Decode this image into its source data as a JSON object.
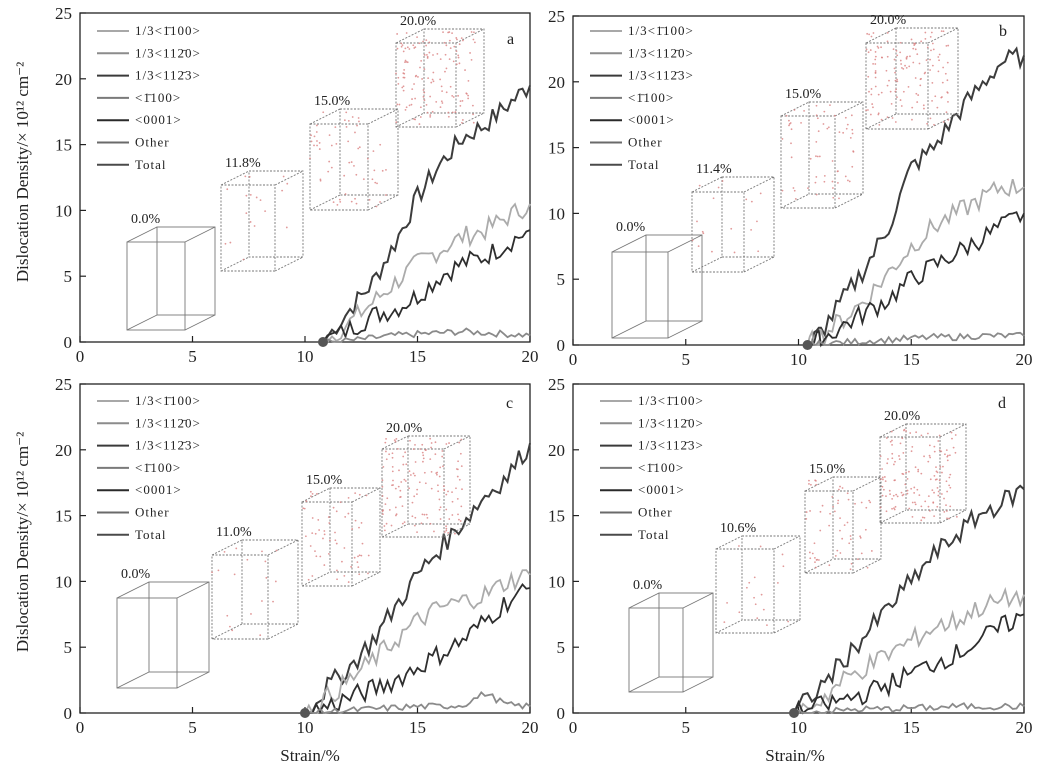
{
  "figure": {
    "xlabel": "Strain/%",
    "ylabel": "Dislocation Density/× 10¹² cm⁻²"
  },
  "legend": [
    {
      "label": "1/3<1̄100>",
      "color": "#a8a8a8"
    },
    {
      "label": "1/3<112̄0>",
      "color": "#8c8c8c"
    },
    {
      "label": "1/3<112̄3>",
      "color": "#3a3a3a"
    },
    {
      "label": "<1̄100>",
      "color": "#7a7a7a"
    },
    {
      "label": "<0001>",
      "color": "#2a2a2a"
    },
    {
      "label": "Other",
      "color": "#6a6a6a"
    },
    {
      "label": "Total",
      "color": "#4a4a4a"
    }
  ],
  "colors": {
    "total": "#3c3c3c",
    "a_type": "#ababab",
    "c_a": "#2e2e2e",
    "other": "#8a8a8a",
    "marker": "#555555",
    "snapshot_frame": "#777777",
    "snapshot_dots": "#d98080"
  },
  "chart_data": [
    {
      "panel": "a",
      "type": "line",
      "xlim": [
        0,
        20
      ],
      "ylim": [
        0,
        25
      ],
      "xticks": [
        0,
        5,
        10,
        15,
        20
      ],
      "yticks": [
        0,
        5,
        10,
        15,
        20,
        25
      ],
      "onset_strain": 10.8,
      "series": [
        {
          "name": "Total",
          "x": [
            10.8,
            12,
            13,
            14,
            15,
            16,
            17,
            18,
            19,
            20
          ],
          "values": [
            0,
            2.5,
            4.5,
            7.5,
            11,
            13.5,
            15.5,
            16.5,
            18,
            19.5
          ]
        },
        {
          "name": "1/3<1̄100>",
          "x": [
            10.8,
            12,
            13,
            14,
            15,
            16,
            17,
            18,
            19,
            20
          ],
          "values": [
            0,
            1.5,
            3,
            4.5,
            6,
            7,
            8,
            8.5,
            9.5,
            10.5
          ]
        },
        {
          "name": "1/3<112̄3>",
          "x": [
            10.8,
            12,
            13,
            14,
            15,
            16,
            17,
            18,
            19,
            20
          ],
          "values": [
            0,
            1,
            2,
            2.5,
            3.5,
            5,
            6,
            6.5,
            7.5,
            8.5
          ]
        },
        {
          "name": "Other",
          "x": [
            10.8,
            12,
            13,
            14,
            15,
            16,
            17,
            18,
            19,
            20
          ],
          "values": [
            0,
            0.1,
            0.3,
            0.5,
            0.6,
            0.7,
            0.8,
            0.7,
            0.6,
            0.5
          ]
        }
      ],
      "snapshots": [
        {
          "label": "0.0%"
        },
        {
          "label": "11.8%"
        },
        {
          "label": "15.0%"
        },
        {
          "label": "20.0%"
        }
      ]
    },
    {
      "panel": "b",
      "type": "line",
      "xlim": [
        0,
        20
      ],
      "ylim": [
        0,
        25
      ],
      "xticks": [
        0,
        5,
        10,
        15,
        20
      ],
      "yticks": [
        0,
        5,
        10,
        15,
        20,
        25
      ],
      "onset_strain": 10.4,
      "series": [
        {
          "name": "Total",
          "x": [
            10.4,
            11,
            12,
            13,
            14,
            15,
            16,
            17,
            18,
            19,
            20
          ],
          "values": [
            0,
            1,
            3.5,
            6,
            9,
            13.5,
            15,
            17.5,
            19.5,
            21.5,
            22
          ]
        },
        {
          "name": "1/3<1̄100>",
          "x": [
            10.4,
            11,
            12,
            13,
            14,
            15,
            16,
            17,
            18,
            19,
            20
          ],
          "values": [
            0,
            0.7,
            2,
            3.5,
            5.5,
            7.5,
            9,
            10,
            11,
            12,
            12
          ]
        },
        {
          "name": "1/3<112̄3>",
          "x": [
            10.4,
            11,
            12,
            13,
            14,
            15,
            16,
            17,
            18,
            19,
            20
          ],
          "values": [
            0,
            0.4,
            1.5,
            2.5,
            3.5,
            5,
            6,
            7,
            8,
            9,
            10
          ]
        },
        {
          "name": "Other",
          "x": [
            10.4,
            11,
            12,
            13,
            14,
            15,
            16,
            17,
            18,
            19,
            20
          ],
          "values": [
            0,
            0.1,
            0.2,
            0.3,
            0.4,
            0.5,
            0.6,
            0.6,
            0.7,
            0.7,
            0.7
          ]
        }
      ],
      "snapshots": [
        {
          "label": "0.0%"
        },
        {
          "label": "11.4%"
        },
        {
          "label": "15.0%"
        },
        {
          "label": "20.0%"
        }
      ]
    },
    {
      "panel": "c",
      "type": "line",
      "xlim": [
        0,
        20
      ],
      "ylim": [
        0,
        25
      ],
      "xticks": [
        0,
        5,
        10,
        15,
        20
      ],
      "yticks": [
        0,
        5,
        10,
        15,
        20,
        25
      ],
      "onset_strain": 10.0,
      "series": [
        {
          "name": "Total",
          "x": [
            10,
            11,
            12,
            13,
            14,
            15,
            16,
            17,
            18,
            19,
            20
          ],
          "values": [
            0,
            2,
            3.5,
            5.5,
            8,
            10.5,
            12.5,
            14.5,
            16.5,
            18,
            20.5
          ]
        },
        {
          "name": "1/3<1̄100>",
          "x": [
            10,
            11,
            12,
            13,
            14,
            15,
            16,
            17,
            18,
            19,
            20
          ],
          "values": [
            0,
            1.2,
            2.5,
            4,
            5.5,
            7,
            8,
            8.5,
            9,
            10,
            10.5
          ]
        },
        {
          "name": "1/3<112̄3>",
          "x": [
            10,
            11,
            12,
            13,
            14,
            15,
            16,
            17,
            18,
            19,
            20
          ],
          "values": [
            0,
            0.5,
            1.2,
            1.8,
            2.5,
            3.5,
            4.5,
            5.5,
            7,
            8.5,
            9.5
          ]
        },
        {
          "name": "Other",
          "x": [
            10,
            11,
            12,
            13,
            14,
            15,
            16,
            17,
            18,
            19,
            20
          ],
          "values": [
            0,
            0.1,
            0.2,
            0.3,
            0.4,
            0.5,
            0.5,
            0.6,
            1.5,
            0.6,
            0.5
          ]
        }
      ],
      "snapshots": [
        {
          "label": "0.0%"
        },
        {
          "label": "11.0%"
        },
        {
          "label": "15.0%"
        },
        {
          "label": "20.0%"
        }
      ]
    },
    {
      "panel": "d",
      "type": "line",
      "xlim": [
        0,
        20
      ],
      "ylim": [
        0,
        25
      ],
      "xticks": [
        0,
        5,
        10,
        15,
        20
      ],
      "yticks": [
        0,
        5,
        10,
        15,
        20,
        25
      ],
      "onset_strain": 9.8,
      "series": [
        {
          "name": "Total",
          "x": [
            9.8,
            11,
            12,
            13,
            14,
            15,
            16,
            17,
            18,
            19,
            20
          ],
          "values": [
            0,
            2,
            4,
            6,
            8,
            10,
            12,
            13.5,
            15,
            16,
            17
          ]
        },
        {
          "name": "1/3<1̄100>",
          "x": [
            9.8,
            11,
            12,
            13,
            14,
            15,
            16,
            17,
            18,
            19,
            20
          ],
          "values": [
            0,
            1,
            2.5,
            3.5,
            4.5,
            5.5,
            6.5,
            7,
            8,
            8.5,
            9
          ]
        },
        {
          "name": "1/3<112̄3>",
          "x": [
            9.8,
            11,
            12,
            13,
            14,
            15,
            16,
            17,
            18,
            19,
            20
          ],
          "values": [
            0,
            0.5,
            1,
            1.5,
            2.2,
            3,
            3.8,
            4.5,
            5.5,
            6.5,
            7.5
          ]
        },
        {
          "name": "Other",
          "x": [
            9.8,
            11,
            12,
            13,
            14,
            15,
            16,
            17,
            18,
            19,
            20
          ],
          "values": [
            0,
            0.1,
            0.2,
            0.3,
            0.3,
            0.4,
            0.4,
            0.5,
            0.5,
            0.5,
            0.5
          ]
        }
      ],
      "snapshots": [
        {
          "label": "0.0%"
        },
        {
          "label": "10.6%"
        },
        {
          "label": "15.0%"
        },
        {
          "label": "20.0%"
        }
      ]
    }
  ]
}
